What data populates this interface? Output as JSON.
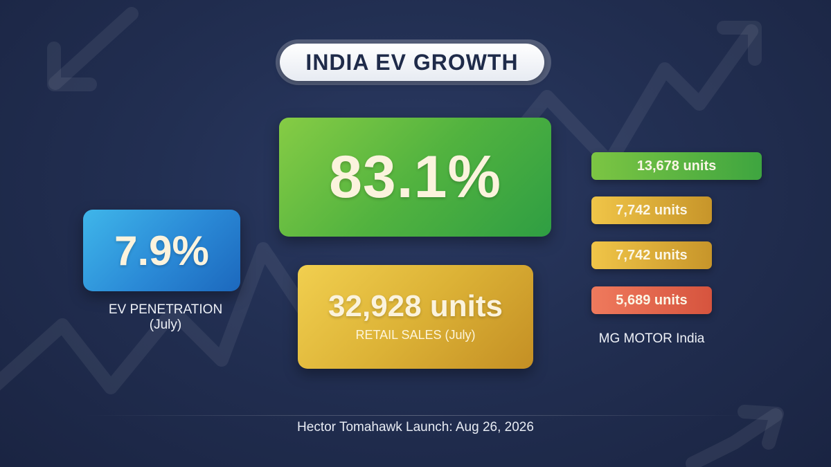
{
  "title": "INDIA EV GROWTH",
  "ev_penetration": {
    "value": "7.9%",
    "label": "EV PENETRATION (July)"
  },
  "growth": {
    "value": "83.1%"
  },
  "retail_sales": {
    "value": "32,928 units",
    "label": "RETAIL SALES (July)"
  },
  "brand_bars": {
    "label": "MG MOTOR India",
    "items": [
      {
        "text": "13,678 units",
        "value": 13678,
        "color": "#4fb141"
      },
      {
        "text": "7,742 units",
        "value": 7742,
        "color": "#dcae36"
      },
      {
        "text": "7,742 units",
        "value": 7742,
        "color": "#dcae36"
      },
      {
        "text": "5,689 units",
        "value": 5689,
        "color": "#e3654c"
      }
    ]
  },
  "footer": "Hector Tomahawk Launch: Aug 26, 2026",
  "background_icons": [
    "trend-up-arrow",
    "trend-down-arrow"
  ],
  "colors": {
    "background": "#222f52",
    "title_text": "#1f2b4a",
    "blue_card": "#2a89d6",
    "green_card": "#52b33f",
    "gold_card": "#dcb236"
  }
}
